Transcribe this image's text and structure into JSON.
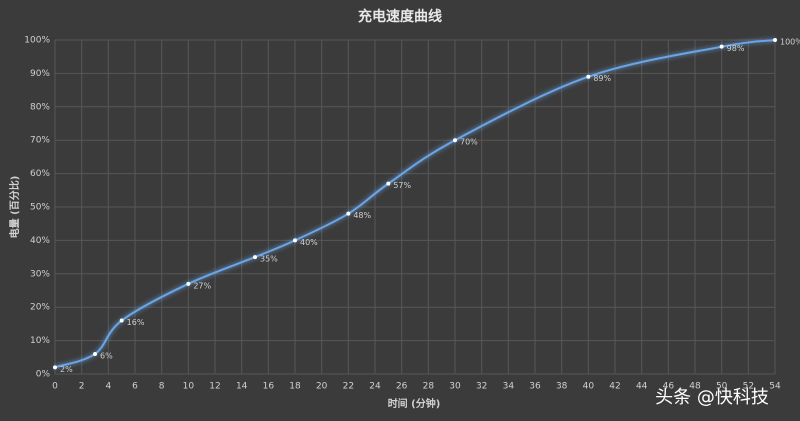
{
  "chart_data": {
    "type": "line",
    "title": "充电速度曲线",
    "x_label": "时间 (分钟)",
    "y_label": "电量 (百分比)",
    "watermark": "头条 @快科技",
    "series": [
      {
        "name": "电量",
        "color": "#6aa5e8",
        "x": [
          0,
          3,
          5,
          10,
          15,
          18,
          22,
          25,
          30,
          40,
          50,
          54
        ],
        "values": [
          2,
          6,
          16,
          27,
          35,
          40,
          48,
          57,
          70,
          89,
          98,
          100
        ],
        "value_labels": [
          "2%",
          "6%",
          "16%",
          "27%",
          "35%",
          "40%",
          "48%",
          "57%",
          "70%",
          "89%",
          "98%",
          "100%"
        ]
      }
    ],
    "xlim": [
      0,
      54
    ],
    "xticks": [
      0,
      2,
      4,
      6,
      8,
      10,
      12,
      14,
      16,
      18,
      20,
      22,
      24,
      26,
      28,
      30,
      32,
      34,
      36,
      38,
      40,
      42,
      44,
      46,
      48,
      50,
      52,
      54
    ],
    "ylim": [
      0,
      100
    ],
    "yticks": [
      {
        "value": 0,
        "label": "0%"
      },
      {
        "value": 10,
        "label": "10%"
      },
      {
        "value": 20,
        "label": "20%"
      },
      {
        "value": 30,
        "label": "30%"
      },
      {
        "value": 40,
        "label": "40%"
      },
      {
        "value": 50,
        "label": "50%"
      },
      {
        "value": 60,
        "label": "60%"
      },
      {
        "value": 70,
        "label": "70%"
      },
      {
        "value": 80,
        "label": "80%"
      },
      {
        "value": 90,
        "label": "90%"
      },
      {
        "value": 100,
        "label": "100%"
      }
    ],
    "grid": true
  }
}
